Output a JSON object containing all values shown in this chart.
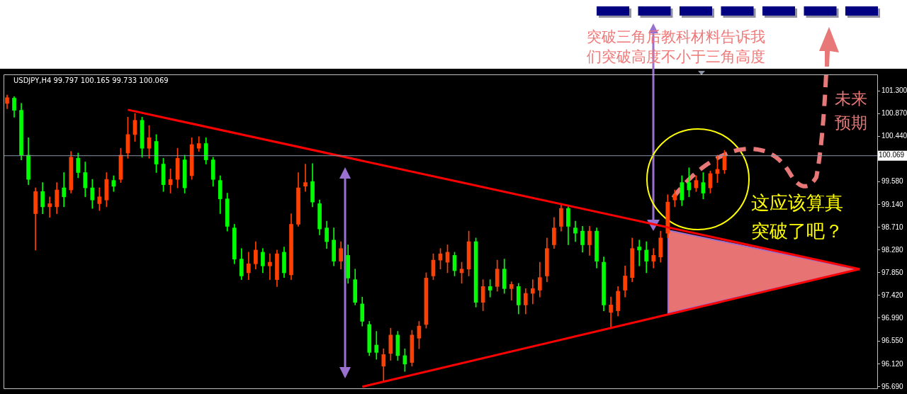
{
  "chart_data": {
    "type": "candlestick",
    "title": "USDJPY,H4 99.797 100.165 99.733 100.069",
    "categories": [
      null,
      null,
      null,
      null,
      null,
      null,
      null,
      null,
      null,
      null,
      null,
      null,
      null,
      null,
      null,
      null,
      null,
      null,
      null,
      null,
      null,
      null,
      null,
      null,
      null,
      null,
      null,
      null,
      null,
      null,
      null,
      null,
      null,
      null,
      null,
      null,
      null,
      null,
      null,
      null,
      null,
      null,
      null,
      null,
      null,
      null,
      null,
      null,
      null,
      null,
      null,
      null,
      null,
      null,
      null,
      null,
      null,
      null,
      null,
      null,
      null,
      null,
      null,
      null,
      null,
      null,
      null,
      null,
      null,
      null,
      null,
      null,
      null,
      null,
      null,
      null,
      null,
      null,
      null,
      null,
      null,
      null,
      null,
      null,
      null,
      null,
      null,
      null,
      null,
      null,
      null,
      null,
      null,
      null,
      null,
      null,
      null,
      null,
      null,
      null,
      null,
      null,
      null,
      null,
      null,
      null,
      null,
      null,
      null,
      null,
      null,
      null,
      null,
      null,
      null,
      null,
      null,
      null,
      null,
      null,
      null,
      null,
      null
    ],
    "ohlc": [
      [
        101.06,
        101.22,
        100.96,
        101.17
      ],
      [
        101.16,
        101.19,
        100.8,
        100.93
      ],
      [
        100.93,
        101.06,
        99.99,
        100.08
      ],
      [
        100.08,
        100.41,
        99.52,
        99.62
      ],
      [
        98.97,
        99.46,
        98.28,
        99.39
      ],
      [
        99.39,
        99.56,
        98.97,
        99.1
      ],
      [
        99.1,
        99.29,
        98.9,
        99.16
      ],
      [
        99.1,
        99.56,
        98.97,
        99.42
      ],
      [
        99.46,
        99.75,
        99.1,
        99.29
      ],
      [
        99.42,
        100.15,
        99.36,
        100.04
      ],
      [
        100.02,
        100.12,
        99.65,
        99.75
      ],
      [
        99.75,
        99.95,
        99.29,
        99.46
      ],
      [
        99.46,
        99.62,
        99.07,
        99.23
      ],
      [
        99.16,
        99.46,
        99.03,
        99.29
      ],
      [
        99.23,
        99.75,
        99.1,
        99.62
      ],
      [
        99.6,
        99.69,
        99.39,
        99.49
      ],
      [
        99.62,
        100.21,
        99.56,
        100.08
      ],
      [
        100.12,
        100.8,
        100.02,
        100.47
      ],
      [
        100.47,
        100.87,
        100.34,
        100.74
      ],
      [
        100.74,
        100.8,
        100.04,
        100.21
      ],
      [
        100.21,
        100.64,
        100.02,
        100.41
      ],
      [
        100.34,
        100.47,
        99.75,
        99.91
      ],
      [
        99.91,
        100.02,
        99.39,
        99.52
      ],
      [
        99.52,
        99.82,
        99.36,
        99.62
      ],
      [
        99.62,
        100.21,
        99.46,
        100.02
      ],
      [
        99.99,
        100.08,
        99.36,
        99.46
      ],
      [
        99.69,
        100.41,
        99.62,
        100.28
      ],
      [
        100.21,
        100.43,
        100.15,
        100.3
      ],
      [
        100.3,
        100.41,
        99.91,
        99.99
      ],
      [
        99.99,
        100.04,
        99.49,
        99.62
      ],
      [
        99.6,
        99.69,
        98.97,
        99.25
      ],
      [
        99.25,
        99.36,
        98.64,
        98.73
      ],
      [
        98.7,
        98.77,
        98.02,
        98.11
      ],
      [
        98.11,
        98.31,
        97.72,
        97.79
      ],
      [
        97.85,
        98.24,
        97.72,
        98.02
      ],
      [
        98.02,
        98.44,
        97.92,
        98.28
      ],
      [
        98.24,
        98.31,
        97.85,
        97.98
      ],
      [
        97.98,
        98.21,
        97.72,
        98.05
      ],
      [
        97.72,
        98.28,
        97.59,
        98.21
      ],
      [
        98.24,
        98.34,
        97.76,
        97.85
      ],
      [
        97.81,
        98.97,
        97.72,
        98.77
      ],
      [
        98.77,
        99.75,
        98.73,
        99.46
      ],
      [
        99.49,
        99.91,
        99.39,
        99.56
      ],
      [
        99.58,
        99.92,
        99.1,
        99.19
      ],
      [
        99.16,
        99.23,
        98.57,
        98.68
      ],
      [
        98.7,
        98.83,
        98.31,
        98.44
      ],
      [
        98.47,
        98.7,
        97.98,
        98.07
      ],
      [
        98.07,
        98.44,
        97.92,
        98.31
      ],
      [
        98.18,
        98.38,
        97.65,
        97.75
      ],
      [
        97.72,
        97.92,
        97.24,
        97.29
      ],
      [
        97.26,
        97.39,
        96.84,
        96.93
      ],
      [
        96.87,
        96.93,
        96.28,
        96.34
      ],
      [
        96.48,
        96.74,
        96.21,
        96.34
      ],
      [
        96.08,
        96.41,
        95.78,
        96.3
      ],
      [
        96.32,
        96.8,
        96.19,
        96.67
      ],
      [
        96.67,
        96.74,
        96.19,
        96.28
      ],
      [
        96.28,
        96.41,
        95.98,
        96.12
      ],
      [
        96.15,
        96.76,
        96.08,
        96.67
      ],
      [
        96.61,
        96.93,
        96.41,
        96.84
      ],
      [
        96.87,
        97.85,
        96.8,
        97.75
      ],
      [
        97.79,
        98.21,
        97.72,
        98.09
      ],
      [
        98.09,
        98.31,
        97.92,
        98.21
      ],
      [
        98.05,
        98.38,
        97.85,
        98.24
      ],
      [
        98.18,
        98.24,
        97.79,
        97.89
      ],
      [
        97.85,
        98.05,
        97.65,
        97.92
      ],
      [
        97.92,
        98.64,
        97.79,
        98.44
      ],
      [
        98.44,
        98.51,
        97.2,
        97.29
      ],
      [
        97.29,
        97.72,
        97.13,
        97.59
      ],
      [
        97.59,
        97.72,
        97.39,
        97.52
      ],
      [
        97.59,
        98.09,
        97.5,
        97.92
      ],
      [
        97.92,
        98.11,
        97.46,
        97.55
      ],
      [
        97.55,
        97.68,
        97.33,
        97.63
      ],
      [
        97.59,
        97.65,
        97.07,
        97.24
      ],
      [
        97.24,
        97.55,
        97.07,
        97.46
      ],
      [
        97.46,
        97.72,
        97.26,
        97.55
      ],
      [
        97.52,
        98.05,
        97.39,
        97.76
      ],
      [
        97.79,
        98.51,
        97.68,
        98.31
      ],
      [
        98.38,
        98.9,
        98.31,
        98.7
      ],
      [
        98.73,
        99.14,
        98.64,
        99.07
      ],
      [
        99.07,
        99.12,
        98.38,
        98.73
      ],
      [
        98.7,
        98.83,
        98.44,
        98.6
      ],
      [
        98.64,
        98.73,
        98.24,
        98.38
      ],
      [
        98.38,
        98.73,
        98.18,
        98.64
      ],
      [
        98.64,
        98.7,
        97.94,
        98.07
      ],
      [
        98.05,
        98.15,
        97.13,
        97.24
      ],
      [
        97.1,
        97.39,
        96.79,
        97.24
      ],
      [
        97.13,
        97.59,
        97.03,
        97.5
      ],
      [
        97.52,
        97.98,
        97.39,
        97.79
      ],
      [
        97.76,
        98.51,
        97.68,
        98.31
      ],
      [
        98.34,
        98.47,
        97.98,
        98.28
      ],
      [
        98.28,
        98.44,
        97.85,
        98.07
      ],
      [
        98.07,
        98.31,
        97.94,
        98.18
      ],
      [
        98.15,
        98.64,
        98.05,
        98.51
      ],
      [
        98.6,
        99.33,
        98.51,
        99.19
      ],
      [
        99.23,
        99.42,
        99.1,
        99.33
      ],
      [
        99.56,
        99.69,
        99.12,
        99.23
      ],
      [
        99.56,
        99.84,
        99.29,
        99.42
      ],
      [
        99.46,
        99.69,
        99.39,
        99.6
      ],
      [
        99.56,
        99.75,
        99.25,
        99.36
      ],
      [
        99.46,
        99.78,
        99.36,
        99.73
      ],
      [
        99.73,
        100.08,
        99.56,
        99.81
      ],
      [
        99.8,
        100.17,
        99.73,
        100.07
      ],
      null,
      null,
      null,
      null,
      null,
      null,
      null,
      null,
      null,
      null,
      null,
      null,
      null,
      null,
      null,
      null,
      null,
      null,
      null,
      null,
      null
    ],
    "colors": [
      "#ff4000",
      "#00ff00",
      "#00ff00",
      "#00ff00",
      "#ff4000",
      "#00ff00",
      "#ff4000",
      "#ff4000",
      "#00ff00",
      "#ff4000",
      "#00ff00",
      "#00ff00",
      "#00ff00",
      "#ff4000",
      "#ff4000",
      "#00ff00",
      "#ff4000",
      "#ff4000",
      "#ff4000",
      "#00ff00",
      "#ff4000",
      "#00ff00",
      "#00ff00",
      "#ff4000",
      "#ff4000",
      "#00ff00",
      "#ff4000",
      "#ff4000",
      "#00ff00",
      "#00ff00",
      "#00ff00",
      "#00ff00",
      "#00ff00",
      "#00ff00",
      "#ff4000",
      "#ff4000",
      "#00ff00",
      "#ff4000",
      "#ff4000",
      "#00ff00",
      "#ff4000",
      "#ff4000",
      "#ff4000",
      "#00ff00",
      "#00ff00",
      "#00ff00",
      "#00ff00",
      "#ff4000",
      "#00ff00",
      "#00ff00",
      "#00ff00",
      "#00ff00",
      "#00ff00",
      "#ff4000",
      "#ff4000",
      "#00ff00",
      "#00ff00",
      "#ff4000",
      "#ff4000",
      "#ff4000",
      "#ff4000",
      "#ff4000",
      "#ff4000",
      "#00ff00",
      "#ff4000",
      "#ff4000",
      "#00ff00",
      "#ff4000",
      "#00ff00",
      "#ff4000",
      "#00ff00",
      "#ff4000",
      "#00ff00",
      "#ff4000",
      "#ff4000",
      "#ff4000",
      "#ff4000",
      "#ff4000",
      "#ff4000",
      "#00ff00",
      "#00ff00",
      "#00ff00",
      "#ff4000",
      "#00ff00",
      "#00ff00",
      "#ff4000",
      "#ff4000",
      "#ff4000",
      "#ff4000",
      "#00ff00",
      "#00ff00",
      "#ff4000",
      "#ff4000",
      "#ff4000",
      "#ff4000",
      "#00ff00",
      "#00ff00",
      "#ff4000",
      "#00ff00",
      "#ff4000",
      "#ff4000",
      "#ff4000",
      null,
      null,
      null,
      null,
      null,
      null,
      null,
      null,
      null,
      null,
      null,
      null,
      null,
      null,
      null,
      null,
      null,
      null,
      null,
      null,
      null
    ],
    "series": [
      {
        "type": "line",
        "color": "#ff0000",
        "values": [
          null,
          null,
          null,
          null,
          null,
          null,
          null,
          null,
          null,
          null,
          null,
          null,
          null,
          null,
          null,
          null,
          null,
          100.94,
          null,
          null,
          null,
          null,
          null,
          null,
          null,
          null,
          null,
          null,
          null,
          null,
          null,
          null,
          null,
          null,
          null,
          null,
          null,
          null,
          null,
          null,
          null,
          null,
          null,
          null,
          null,
          null,
          null,
          null,
          null,
          null,
          null,
          null,
          null,
          null,
          null,
          null,
          null,
          null,
          null,
          null,
          null,
          null,
          null,
          null,
          null,
          null,
          null,
          null,
          null,
          null,
          null,
          null,
          null,
          null,
          null,
          null,
          null,
          null,
          null,
          null,
          null,
          null,
          null,
          null,
          null,
          null,
          null,
          null,
          null,
          null,
          null,
          null,
          null,
          null,
          null,
          null,
          null,
          null,
          null,
          null,
          null,
          null,
          null,
          null,
          null,
          null,
          null,
          null,
          null,
          null,
          null,
          null,
          null,
          null,
          null,
          null,
          null,
          null,
          null,
          null,
          97.92,
          null,
          null
        ]
      },
      {
        "type": "line",
        "color": "#ff0000",
        "values": [
          null,
          null,
          null,
          null,
          null,
          null,
          null,
          null,
          null,
          null,
          null,
          null,
          null,
          null,
          null,
          null,
          null,
          null,
          null,
          null,
          null,
          null,
          null,
          null,
          null,
          null,
          null,
          null,
          null,
          null,
          null,
          null,
          null,
          null,
          null,
          null,
          null,
          null,
          null,
          null,
          null,
          null,
          null,
          null,
          null,
          null,
          null,
          null,
          null,
          null,
          95.69,
          null,
          null,
          null,
          null,
          null,
          null,
          null,
          null,
          null,
          null,
          null,
          null,
          null,
          null,
          null,
          null,
          null,
          null,
          null,
          null,
          null,
          null,
          null,
          null,
          null,
          null,
          null,
          null,
          null,
          null,
          null,
          null,
          null,
          null,
          null,
          null,
          null,
          null,
          null,
          null,
          null,
          null,
          null,
          null,
          null,
          null,
          null,
          null,
          null,
          null,
          null,
          null,
          null,
          null,
          null,
          null,
          null,
          null,
          null,
          null,
          null,
          null,
          null,
          null,
          null,
          null,
          null,
          null,
          null,
          97.92,
          null,
          null
        ]
      }
    ],
    "ylim": [
      95.66,
      101.61
    ],
    "yticks": [
      {
        "value": 101.3,
        "label": "101.300"
      },
      {
        "value": 100.87,
        "label": "100.870"
      },
      {
        "value": 100.44,
        "label": "100.440"
      },
      {
        "value": 99.58,
        "label": "99.580"
      },
      {
        "value": 99.14,
        "label": "99.140"
      },
      {
        "value": 98.71,
        "label": "98.710"
      },
      {
        "value": 98.28,
        "label": "98.280"
      },
      {
        "value": 97.85,
        "label": "97.850"
      },
      {
        "value": 97.42,
        "label": "97.420"
      },
      {
        "value": 96.99,
        "label": "96.990"
      },
      {
        "value": 96.55,
        "label": "96.550"
      },
      {
        "value": 96.12,
        "label": "96.120"
      },
      {
        "value": 95.69,
        "label": "95.690"
      }
    ],
    "ref_lines": [
      {
        "axis": "y",
        "value": 100.069,
        "label": "100.069",
        "color": "#8a96a8"
      }
    ],
    "annotations": [
      "突破三角后教科材料告诉我们突破高度不小于三角高度",
      "未来预期",
      "这应该算真突破了吧？"
    ]
  }
}
